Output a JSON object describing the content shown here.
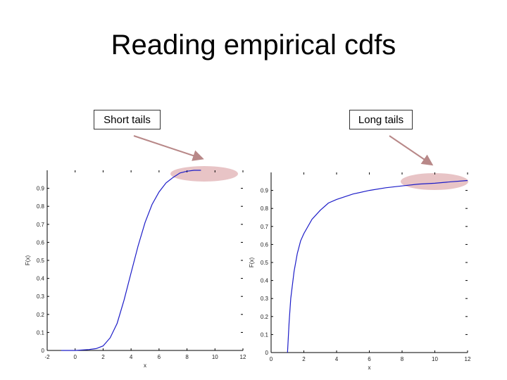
{
  "slide": {
    "title": "Reading empirical cdfs"
  },
  "callouts": {
    "left": "Short tails",
    "right": "Long tails"
  },
  "colors": {
    "curve": "#1c1cc8",
    "highlight": "#e8c4c6",
    "arrow": "#b88888",
    "axis": "#000000"
  },
  "chart_data": [
    {
      "type": "line",
      "title": "",
      "xlabel": "x",
      "ylabel": "F(x)",
      "xlim": [
        -2,
        12
      ],
      "ylim": [
        0,
        1
      ],
      "xticks": [
        -2,
        0,
        2,
        4,
        6,
        8,
        10,
        12
      ],
      "xtick_labels": [
        "-2",
        "0",
        "2",
        "4",
        "6",
        "8",
        "10",
        "12"
      ],
      "yticks": [
        0,
        0.1,
        0.2,
        0.3,
        0.4,
        0.5,
        0.6,
        0.7,
        0.8,
        0.9
      ],
      "ytick_labels": [
        "0",
        "0.1",
        "0.2",
        "0.3",
        "0.4",
        "0.5",
        "0.6",
        "0.7",
        "0.8",
        "0.9"
      ],
      "grid": false,
      "annotation": "Short tails",
      "series": [
        {
          "x": [
            -1,
            0,
            1,
            1.5,
            2,
            2.5,
            3,
            3.5,
            4,
            4.5,
            5,
            5.5,
            6,
            6.5,
            7,
            7.5,
            8,
            8.5,
            9
          ],
          "y": [
            0,
            0,
            0.005,
            0.01,
            0.025,
            0.07,
            0.15,
            0.28,
            0.43,
            0.58,
            0.71,
            0.81,
            0.88,
            0.93,
            0.96,
            0.985,
            0.995,
            1.0,
            1.0
          ]
        }
      ]
    },
    {
      "type": "line",
      "title": "",
      "xlabel": "x",
      "ylabel": "F(x)",
      "xlim": [
        0,
        12
      ],
      "ylim": [
        0,
        1
      ],
      "xticks": [
        0,
        2,
        4,
        6,
        8,
        10,
        12
      ],
      "xtick_labels": [
        "0",
        "2",
        "4",
        "6",
        "8",
        "10",
        "12"
      ],
      "yticks": [
        0,
        0.1,
        0.2,
        0.3,
        0.4,
        0.5,
        0.6,
        0.7,
        0.8,
        0.9
      ],
      "ytick_labels": [
        "0",
        "0.1",
        "0.2",
        "0.3",
        "0.4",
        "0.5",
        "0.6",
        "0.7",
        "0.8",
        "0.9"
      ],
      "grid": false,
      "annotation": "Long tails",
      "series": [
        {
          "x": [
            1,
            1.1,
            1.2,
            1.4,
            1.6,
            1.8,
            2,
            2.5,
            3,
            3.5,
            4,
            5,
            6,
            7,
            8,
            9,
            10,
            11,
            12
          ],
          "y": [
            0,
            0.17,
            0.3,
            0.45,
            0.55,
            0.62,
            0.66,
            0.74,
            0.79,
            0.83,
            0.85,
            0.88,
            0.9,
            0.915,
            0.925,
            0.935,
            0.94,
            0.948,
            0.955
          ]
        }
      ]
    }
  ]
}
